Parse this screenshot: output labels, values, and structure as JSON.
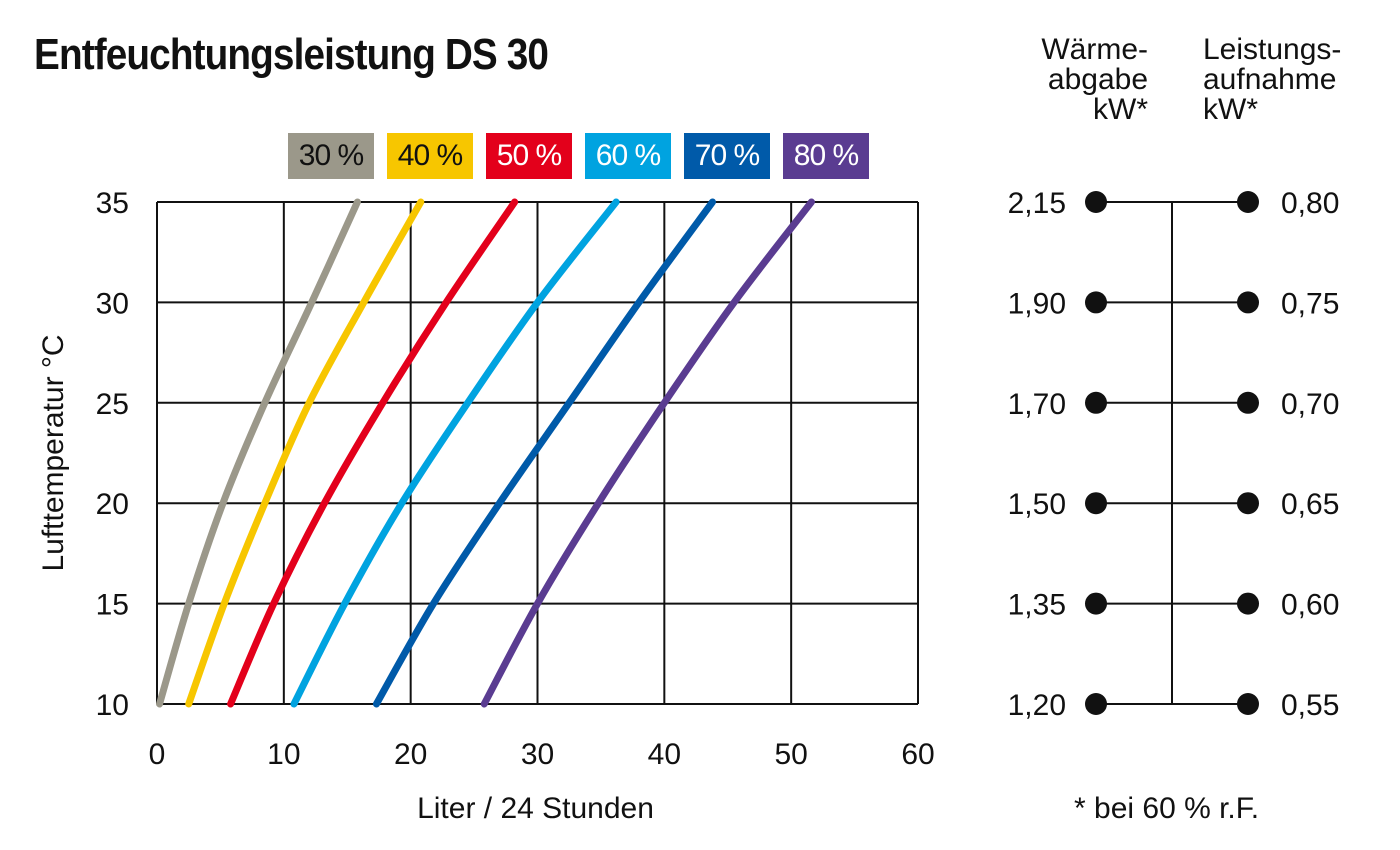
{
  "title": "Entfeuchtungsleistung DS 30",
  "chart_data": {
    "type": "line",
    "title": "Entfeuchtungsleistung DS 30",
    "xlabel": "Liter / 24 Stunden",
    "ylabel": "Lufttemperatur °C",
    "xlim": [
      0,
      60
    ],
    "ylim": [
      10,
      35
    ],
    "xticks": [
      "0",
      "10",
      "20",
      "30",
      "40",
      "50",
      "60"
    ],
    "yticks": [
      "10",
      "15",
      "20",
      "25",
      "30",
      "35"
    ],
    "grid": true,
    "legend": "top",
    "series": [
      {
        "name": "30 %",
        "color": "#9b988a",
        "text": "dark",
        "x": [
          0.2,
          2.5,
          5.2,
          8.5,
          12.2,
          15.8
        ],
        "y": [
          10,
          15,
          20,
          25,
          30,
          35
        ]
      },
      {
        "name": "40 %",
        "color": "#f7c600",
        "text": "dark",
        "x": [
          2.5,
          5.3,
          8.5,
          12.0,
          16.3,
          20.8
        ],
        "y": [
          10,
          15,
          20,
          25,
          30,
          35
        ]
      },
      {
        "name": "50 %",
        "color": "#e3001b",
        "text": "light",
        "x": [
          5.8,
          9.2,
          13.2,
          17.8,
          22.8,
          28.2
        ],
        "y": [
          10,
          15,
          20,
          25,
          30,
          35
        ]
      },
      {
        "name": "60 %",
        "color": "#00a3e0",
        "text": "light",
        "x": [
          10.8,
          14.8,
          19.3,
          24.5,
          30.0,
          36.2
        ],
        "y": [
          10,
          15,
          20,
          25,
          30,
          35
        ]
      },
      {
        "name": "70 %",
        "color": "#005aa9",
        "text": "light",
        "x": [
          17.3,
          21.8,
          27.0,
          32.5,
          38.0,
          43.8
        ],
        "y": [
          10,
          15,
          20,
          25,
          30,
          35
        ]
      },
      {
        "name": "80 %",
        "color": "#5a3c91",
        "text": "light",
        "x": [
          25.8,
          30.0,
          34.8,
          40.0,
          45.5,
          51.6
        ],
        "y": [
          10,
          15,
          20,
          25,
          30,
          35
        ]
      }
    ]
  },
  "side_table": {
    "left_header": "Wärme-\nabgabe\nkW*",
    "right_header": "Leistungs-\naufnahme\nkW*",
    "rows": [
      {
        "temp": 35,
        "heat": "2,15",
        "power": "0,80"
      },
      {
        "temp": 30,
        "heat": "1,90",
        "power": "0,75"
      },
      {
        "temp": 25,
        "heat": "1,70",
        "power": "0,70"
      },
      {
        "temp": 20,
        "heat": "1,50",
        "power": "0,65"
      },
      {
        "temp": 15,
        "heat": "1,35",
        "power": "0,60"
      },
      {
        "temp": 10,
        "heat": "1,20",
        "power": "0,55"
      }
    ],
    "footnote": "* bei 60 % r.F."
  }
}
